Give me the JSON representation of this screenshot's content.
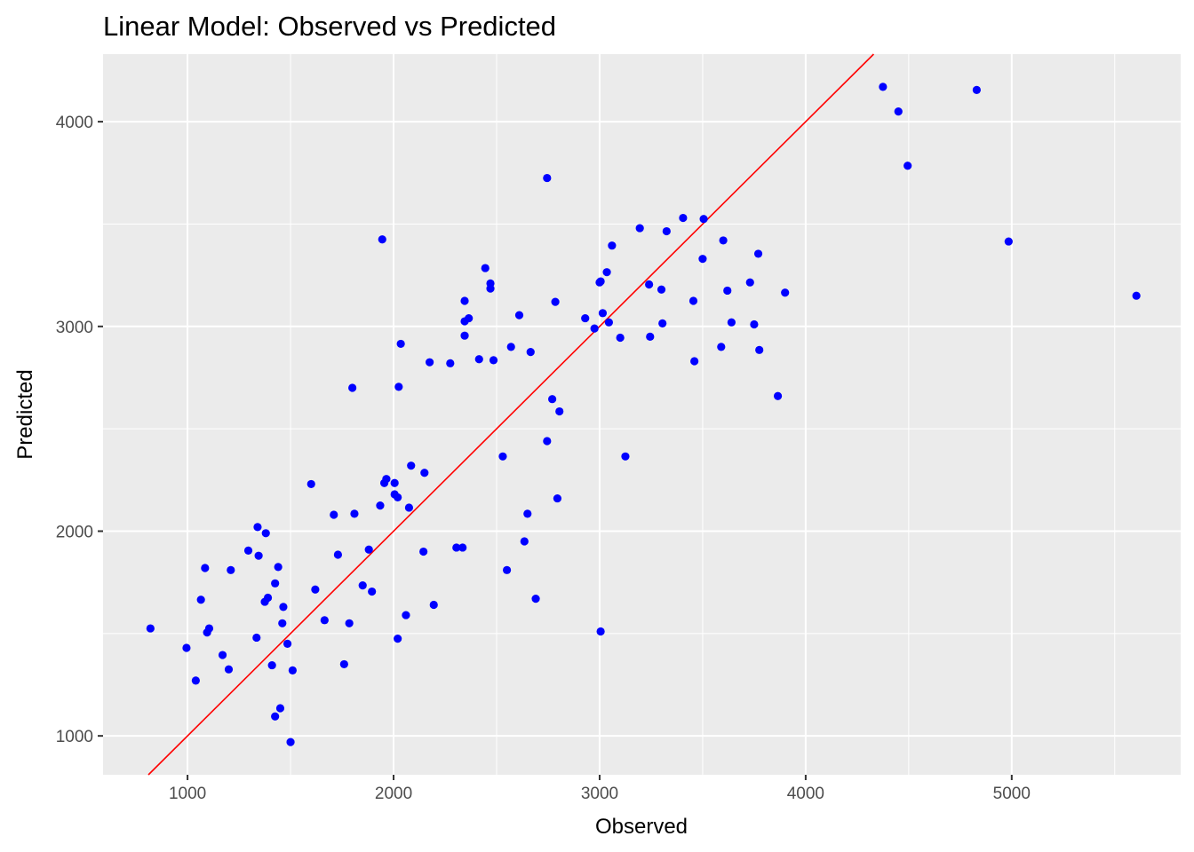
{
  "chart_data": {
    "type": "scatter",
    "title": "Linear Model: Observed vs Predicted",
    "xlabel": "Observed",
    "ylabel": "Predicted",
    "xlim": [
      590,
      5820
    ],
    "ylim": [
      810,
      4330
    ],
    "x_major_ticks": [
      1000,
      2000,
      3000,
      4000,
      5000
    ],
    "x_minor_ticks": [
      1500,
      2500,
      3500,
      4500,
      5500
    ],
    "y_major_ticks": [
      1000,
      2000,
      3000,
      4000
    ],
    "y_minor_ticks": [
      1500,
      2500,
      3500
    ],
    "tick_labels_x": [
      "1000",
      "2000",
      "3000",
      "4000",
      "5000"
    ],
    "tick_labels_y": [
      "1000",
      "2000",
      "3000",
      "4000"
    ],
    "grid": true,
    "panel_color": "#ebebeb",
    "grid_color": "#ffffff",
    "point_color": "#0000ff",
    "reference_line": {
      "slope": 1,
      "intercept": 0,
      "color": "#ff0000"
    },
    "points": [
      [
        820,
        1525
      ],
      [
        995,
        1430
      ],
      [
        1040,
        1270
      ],
      [
        1065,
        1665
      ],
      [
        1085,
        1820
      ],
      [
        1095,
        1505
      ],
      [
        1105,
        1525
      ],
      [
        1170,
        1395
      ],
      [
        1200,
        1325
      ],
      [
        1210,
        1810
      ],
      [
        1295,
        1905
      ],
      [
        1335,
        1480
      ],
      [
        1340,
        2020
      ],
      [
        1345,
        1880
      ],
      [
        1375,
        1655
      ],
      [
        1380,
        1990
      ],
      [
        1390,
        1675
      ],
      [
        1410,
        1345
      ],
      [
        1425,
        1745
      ],
      [
        1425,
        1095
      ],
      [
        1440,
        1825
      ],
      [
        1450,
        1135
      ],
      [
        1460,
        1550
      ],
      [
        1465,
        1630
      ],
      [
        1485,
        1450
      ],
      [
        1500,
        970
      ],
      [
        1510,
        1320
      ],
      [
        1600,
        2230
      ],
      [
        1620,
        1715
      ],
      [
        1665,
        1565
      ],
      [
        1710,
        2080
      ],
      [
        1730,
        1885
      ],
      [
        1760,
        1350
      ],
      [
        1785,
        1550
      ],
      [
        1800,
        2700
      ],
      [
        1810,
        2085
      ],
      [
        1850,
        1735
      ],
      [
        1880,
        1910
      ],
      [
        1895,
        1705
      ],
      [
        1935,
        2125
      ],
      [
        1945,
        3425
      ],
      [
        1955,
        2235
      ],
      [
        1965,
        2255
      ],
      [
        2005,
        2235
      ],
      [
        2005,
        2180
      ],
      [
        2020,
        2165
      ],
      [
        2020,
        1475
      ],
      [
        2025,
        2705
      ],
      [
        2035,
        2915
      ],
      [
        2060,
        1590
      ],
      [
        2075,
        2115
      ],
      [
        2085,
        2320
      ],
      [
        2145,
        1900
      ],
      [
        2150,
        2285
      ],
      [
        2175,
        2825
      ],
      [
        2195,
        1640
      ],
      [
        2275,
        2820
      ],
      [
        2305,
        1920
      ],
      [
        2335,
        1920
      ],
      [
        2345,
        3125
      ],
      [
        2345,
        2955
      ],
      [
        2345,
        3025
      ],
      [
        2365,
        3040
      ],
      [
        2415,
        2840
      ],
      [
        2445,
        3285
      ],
      [
        2470,
        3210
      ],
      [
        2470,
        3185
      ],
      [
        2485,
        2835
      ],
      [
        2530,
        2365
      ],
      [
        2550,
        1810
      ],
      [
        2570,
        2900
      ],
      [
        2610,
        3055
      ],
      [
        2635,
        1950
      ],
      [
        2650,
        2085
      ],
      [
        2665,
        2875
      ],
      [
        2690,
        1670
      ],
      [
        2745,
        3725
      ],
      [
        2745,
        2440
      ],
      [
        2770,
        2645
      ],
      [
        2785,
        3120
      ],
      [
        2795,
        2160
      ],
      [
        2805,
        2585
      ],
      [
        2930,
        3040
      ],
      [
        2975,
        2990
      ],
      [
        3000,
        3215
      ],
      [
        3005,
        3220
      ],
      [
        3005,
        1510
      ],
      [
        3015,
        3065
      ],
      [
        3035,
        3265
      ],
      [
        3045,
        3020
      ],
      [
        3060,
        3395
      ],
      [
        3100,
        2945
      ],
      [
        3125,
        2365
      ],
      [
        3195,
        3480
      ],
      [
        3240,
        3205
      ],
      [
        3245,
        2950
      ],
      [
        3300,
        3180
      ],
      [
        3305,
        3015
      ],
      [
        3325,
        3465
      ],
      [
        3405,
        3530
      ],
      [
        3455,
        3125
      ],
      [
        3460,
        2830
      ],
      [
        3500,
        3330
      ],
      [
        3505,
        3525
      ],
      [
        3590,
        2900
      ],
      [
        3600,
        3420
      ],
      [
        3620,
        3175
      ],
      [
        3640,
        3020
      ],
      [
        3730,
        3215
      ],
      [
        3750,
        3010
      ],
      [
        3770,
        3355
      ],
      [
        3775,
        2885
      ],
      [
        3865,
        2660
      ],
      [
        3900,
        3165
      ],
      [
        4375,
        4170
      ],
      [
        4450,
        4050
      ],
      [
        4495,
        3785
      ],
      [
        4830,
        4155
      ],
      [
        4985,
        3415
      ],
      [
        5605,
        3150
      ]
    ]
  }
}
